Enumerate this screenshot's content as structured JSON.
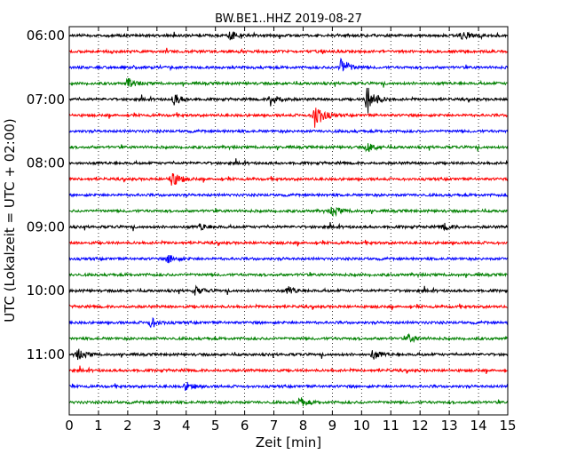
{
  "chart_data": {
    "type": "line",
    "title": "BW.BE1..HHZ 2019-08-27",
    "xlabel": "Zeit  [min]",
    "ylabel": "UTC (Lokalzeit = UTC + 02:00)",
    "xlim": [
      0,
      15
    ],
    "x_ticks": [
      "0",
      "1",
      "2",
      "3",
      "4",
      "5",
      "6",
      "7",
      "8",
      "9",
      "10",
      "11",
      "12",
      "13",
      "14",
      "15"
    ],
    "y_ticks": [
      "06:00",
      "07:00",
      "08:00",
      "09:00",
      "10:00",
      "11:00"
    ],
    "grid": true,
    "trace_interval_minutes": 15,
    "trace_start": "06:00",
    "trace_count": 24,
    "trace_colors": [
      "#000000",
      "#ff0000",
      "#0000ff",
      "#008000"
    ],
    "events": [
      {
        "trace": 4,
        "minute": 10.2,
        "amplitude": 1.0
      },
      {
        "trace": 4,
        "minute": 6.9,
        "amplitude": 0.45
      },
      {
        "trace": 4,
        "minute": 3.6,
        "amplitude": 0.35
      },
      {
        "trace": 5,
        "minute": 8.4,
        "amplitude": 0.9
      },
      {
        "trace": 2,
        "minute": 9.3,
        "amplitude": 0.6
      },
      {
        "trace": 9,
        "minute": 3.5,
        "amplitude": 0.55
      },
      {
        "trace": 3,
        "minute": 2.0,
        "amplitude": 0.3
      },
      {
        "trace": 0,
        "minute": 5.5,
        "amplitude": 0.25
      },
      {
        "trace": 0,
        "minute": 13.4,
        "amplitude": 0.25
      },
      {
        "trace": 11,
        "minute": 9.0,
        "amplitude": 0.3
      },
      {
        "trace": 14,
        "minute": 3.4,
        "amplitude": 0.3
      },
      {
        "trace": 16,
        "minute": 4.3,
        "amplitude": 0.25
      },
      {
        "trace": 16,
        "minute": 7.5,
        "amplitude": 0.25
      },
      {
        "trace": 18,
        "minute": 2.8,
        "amplitude": 0.3
      },
      {
        "trace": 19,
        "minute": 11.6,
        "amplitude": 0.25
      },
      {
        "trace": 20,
        "minute": 0.3,
        "amplitude": 0.3
      },
      {
        "trace": 20,
        "minute": 10.4,
        "amplitude": 0.3
      },
      {
        "trace": 22,
        "minute": 4.0,
        "amplitude": 0.25
      },
      {
        "trace": 23,
        "minute": 7.9,
        "amplitude": 0.3
      },
      {
        "trace": 7,
        "minute": 10.2,
        "amplitude": 0.3
      },
      {
        "trace": 12,
        "minute": 4.5,
        "amplitude": 0.2
      },
      {
        "trace": 12,
        "minute": 12.8,
        "amplitude": 0.2
      }
    ]
  }
}
